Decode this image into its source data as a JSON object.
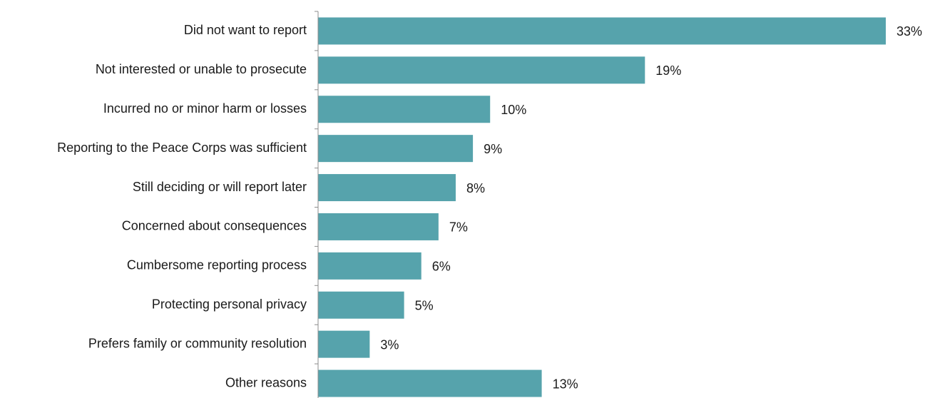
{
  "chart_data": {
    "type": "bar",
    "orientation": "horizontal",
    "categories": [
      "Did not want to report",
      "Not interested or unable to prosecute",
      "Incurred no or minor harm or losses",
      "Reporting to the Peace Corps was sufficient",
      "Still deciding or will report later",
      "Concerned about consequences",
      "Cumbersome reporting process",
      "Protecting personal privacy",
      "Prefers family or community resolution",
      "Other reasons"
    ],
    "values": [
      33,
      19,
      10,
      9,
      8,
      7,
      6,
      5,
      3,
      13
    ],
    "value_labels": [
      "33%",
      "19%",
      "10%",
      "9%",
      "8%",
      "7%",
      "6%",
      "5%",
      "3%",
      "13%"
    ],
    "xlim": [
      0,
      33
    ],
    "grid": false,
    "legend": "none",
    "bar_color": "#56a3ac"
  }
}
